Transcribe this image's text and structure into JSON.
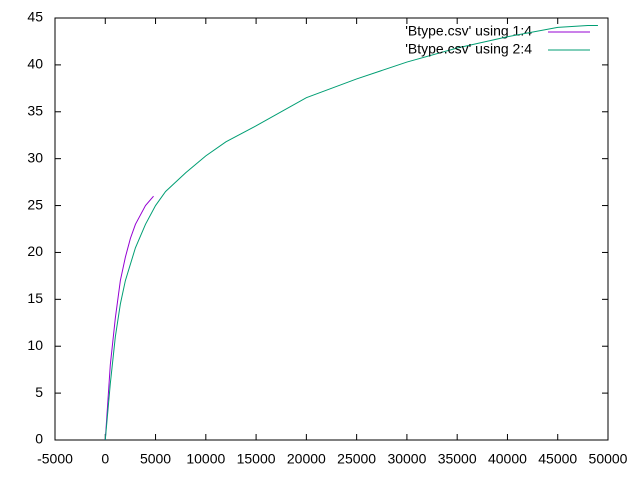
{
  "chart_data": {
    "type": "line",
    "xlim": [
      -5000,
      50000
    ],
    "xticks": [
      -5000,
      0,
      5000,
      10000,
      15000,
      20000,
      25000,
      30000,
      35000,
      40000,
      45000,
      50000
    ],
    "ylim": [
      0,
      45
    ],
    "yticks": [
      0,
      5,
      10,
      15,
      20,
      25,
      30,
      35,
      40,
      45
    ],
    "legend": "top-right",
    "series": [
      {
        "name": "'Btype.csv' using 1:4",
        "color": "#9400d3",
        "x": [
          0,
          500,
          1000,
          1500,
          2000,
          2500,
          3000,
          3500,
          4000,
          4800
        ],
        "values": [
          0,
          8,
          13,
          17,
          19.5,
          21.5,
          23,
          24,
          25,
          26
        ]
      },
      {
        "name": "'Btype.csv' using 2:4",
        "color": "#009e73",
        "x": [
          0,
          500,
          1000,
          1500,
          2000,
          3000,
          4000,
          5000,
          6000,
          8000,
          10000,
          12000,
          15000,
          20000,
          25000,
          30000,
          35000,
          40000,
          45000,
          48000,
          49000
        ],
        "values": [
          0,
          6,
          11,
          14.5,
          17,
          20.5,
          23,
          25,
          26.5,
          28.5,
          30.3,
          31.8,
          33.5,
          36.5,
          38.5,
          40.3,
          41.8,
          43,
          44,
          44.2,
          44.2
        ]
      }
    ]
  }
}
